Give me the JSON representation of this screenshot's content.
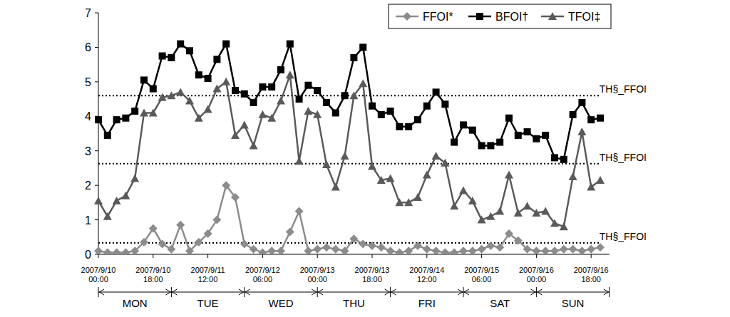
{
  "chart_data": {
    "type": "line",
    "categories": [
      "2007/9/10 00:00",
      null,
      null,
      null,
      null,
      null,
      "2007/9/10 18:00",
      null,
      null,
      null,
      null,
      null,
      "2007/9/11 12:00",
      null,
      null,
      null,
      null,
      null,
      "2007/9/12 06:00",
      null,
      null,
      null,
      null,
      null,
      "2007/9/13 00:00",
      null,
      null,
      null,
      null,
      null,
      "2007/9/13 18:00",
      null,
      null,
      null,
      null,
      null,
      "2007/9/14 12:00",
      null,
      null,
      null,
      null,
      null,
      "2007/9/15 06:00",
      null,
      null,
      null,
      null,
      null,
      "2007/9/16 00:00",
      null,
      null,
      null,
      null,
      null,
      "2007/9/16 18:00",
      null
    ],
    "x_groups": [
      "MON",
      "TUE",
      "WED",
      "THU",
      "FRI",
      "SAT",
      "SUN"
    ],
    "series": [
      {
        "name": "FFOI*",
        "color": "#8c8c8c",
        "marker": "diamond",
        "values": [
          0.1,
          0.05,
          0.05,
          0.05,
          0.1,
          0.35,
          0.75,
          0.3,
          0.15,
          0.85,
          0.1,
          0.35,
          0.6,
          1.0,
          2.0,
          1.65,
          0.3,
          0.15,
          0.05,
          0.1,
          0.1,
          0.65,
          1.25,
          0.1,
          0.15,
          0.2,
          0.15,
          0.1,
          0.45,
          0.3,
          0.25,
          0.2,
          0.1,
          0.05,
          0.1,
          0.25,
          0.15,
          0.1,
          0.05,
          0.05,
          0.1,
          0.1,
          0.15,
          0.25,
          0.2,
          0.6,
          0.4,
          0.15,
          0.1,
          0.1,
          0.1,
          0.15,
          0.15,
          0.1,
          0.15,
          0.2
        ]
      },
      {
        "name": "BFOI†",
        "color": "#000000",
        "marker": "square",
        "values": [
          3.9,
          3.45,
          3.9,
          3.95,
          4.15,
          5.05,
          4.8,
          5.75,
          5.7,
          6.1,
          5.9,
          5.2,
          5.1,
          5.65,
          6.1,
          4.75,
          4.65,
          4.4,
          4.85,
          4.85,
          5.35,
          6.1,
          4.5,
          4.9,
          4.75,
          4.4,
          4.1,
          4.6,
          5.7,
          6.0,
          4.3,
          4.05,
          4.15,
          3.7,
          3.7,
          3.9,
          4.3,
          4.7,
          4.35,
          3.25,
          3.75,
          3.6,
          3.15,
          3.15,
          3.25,
          3.95,
          3.45,
          3.55,
          3.35,
          3.45,
          2.8,
          2.75,
          4.05,
          4.4,
          3.9,
          3.95
        ]
      },
      {
        "name": "TFOI‡",
        "color": "#5a5a5a",
        "marker": "triangle",
        "values": [
          1.55,
          1.1,
          1.55,
          1.7,
          2.2,
          4.1,
          4.1,
          4.55,
          4.6,
          4.7,
          4.45,
          3.95,
          4.2,
          4.8,
          5.0,
          3.45,
          3.75,
          3.15,
          4.05,
          3.95,
          4.45,
          5.2,
          2.7,
          4.15,
          4.05,
          2.6,
          1.95,
          2.85,
          4.6,
          4.95,
          2.55,
          2.15,
          2.2,
          1.5,
          1.5,
          1.65,
          2.3,
          2.85,
          2.65,
          1.4,
          1.85,
          1.55,
          1.0,
          1.1,
          1.25,
          2.3,
          1.2,
          1.4,
          1.2,
          1.25,
          0.9,
          0.8,
          2.25,
          3.55,
          1.95,
          2.15
        ]
      }
    ],
    "thresholds": [
      {
        "value": 4.6,
        "label": "TH§_FFOI"
      },
      {
        "value": 2.63,
        "label": "TH§_FFOI"
      },
      {
        "value": 0.33,
        "label": "TH§_FFOI"
      }
    ],
    "ylim": [
      0,
      7
    ],
    "yticks": [
      0,
      1,
      2,
      3,
      4,
      5,
      6,
      7
    ],
    "grid": false,
    "legend": "top-right"
  }
}
